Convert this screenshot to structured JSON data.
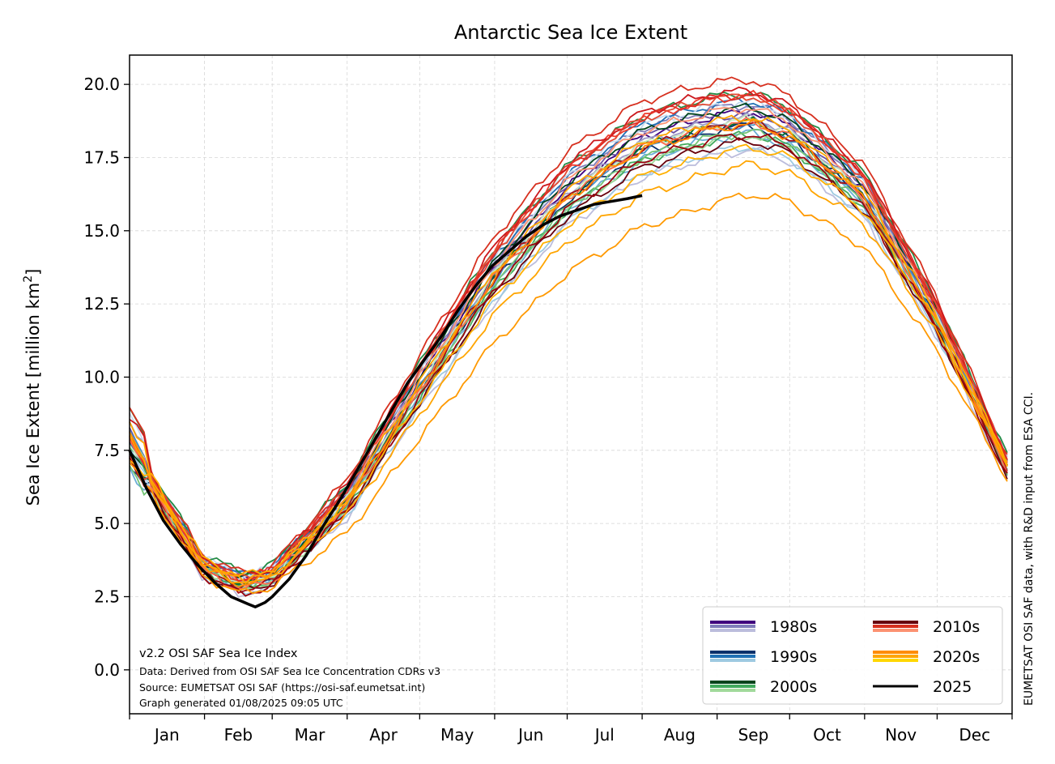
{
  "chart_data": {
    "type": "line",
    "title": "Antarctic Sea Ice Extent",
    "ylabel": "Sea Ice Extent [million km²]",
    "ylabel_main": "Sea Ice Extent [million km",
    "ylabel_sup": "2",
    "ylabel_end": "]",
    "ylim": [
      -1.5,
      21.0
    ],
    "yticks": [
      0.0,
      2.5,
      5.0,
      7.5,
      10.0,
      12.5,
      15.0,
      17.5,
      20.0
    ],
    "ytick_labels": [
      "0.0",
      "2.5",
      "5.0",
      "7.5",
      "10.0",
      "12.5",
      "15.0",
      "17.5",
      "20.0"
    ],
    "xlim": [
      1,
      366
    ],
    "month_labels": [
      "Jan",
      "Feb",
      "Mar",
      "Apr",
      "May",
      "Jun",
      "Jul",
      "Aug",
      "Sep",
      "Oct",
      "Nov",
      "Dec"
    ],
    "month_starts": [
      1,
      32,
      60,
      91,
      121,
      152,
      182,
      213,
      244,
      274,
      305,
      335,
      366
    ],
    "grid": true,
    "legend_position": "bottom-right",
    "annotations": {
      "version": "v2.2 OSI SAF Sea Ice Index",
      "data_note": "Data: Derived from OSI SAF Sea Ice Concentration CDRs v3",
      "source_note": "Source: EUMETSAT OSI SAF (https://osi-saf.eumetsat.int)",
      "generated_note": "Graph generated 01/08/2025 09:05 UTC",
      "side_credit": "EUMETSAT OSI SAF data, with R&D input from ESA CCI."
    },
    "legend": [
      {
        "label": "1980s",
        "colors": [
          "#3f007d",
          "#807dba",
          "#bcbddc"
        ]
      },
      {
        "label": "1990s",
        "colors": [
          "#08306b",
          "#2171b5",
          "#9ecae1"
        ]
      },
      {
        "label": "2000s",
        "colors": [
          "#00441b",
          "#41ab5d",
          "#a1d99b"
        ]
      },
      {
        "label": "2010s",
        "colors": [
          "#67000d",
          "#d7301f",
          "#fc9272"
        ]
      },
      {
        "label": "2020s",
        "colors": [
          "#ff8c00",
          "#ffa500",
          "#ffd700"
        ]
      },
      {
        "label": "2025",
        "colors": [
          "#000000"
        ]
      }
    ],
    "decade_curves": {
      "x": [
        1,
        31,
        47,
        60,
        91,
        121,
        152,
        182,
        213,
        244,
        258,
        274,
        305,
        335,
        366
      ],
      "median": [
        7.6,
        3.6,
        2.95,
        3.2,
        5.8,
        9.7,
        13.5,
        16.2,
        17.9,
        18.6,
        18.75,
        18.3,
        16.2,
        12.0,
        6.6
      ],
      "note": "Approximate median envelope; individual year curves shown as offsets around these values"
    },
    "series": [
      {
        "name": "2025",
        "color": "#000000",
        "x": [
          1,
          8,
          15,
          22,
          29,
          36,
          43,
          50,
          53,
          57,
          60,
          67,
          74,
          81,
          88,
          95,
          102,
          109,
          116,
          123,
          130,
          137,
          144,
          151,
          158,
          165,
          172,
          179,
          186,
          193,
          200,
          207,
          213
        ],
        "y": [
          7.5,
          6.2,
          5.1,
          4.3,
          3.6,
          3.0,
          2.5,
          2.25,
          2.15,
          2.3,
          2.5,
          3.1,
          3.9,
          4.9,
          5.8,
          6.8,
          7.8,
          8.8,
          9.8,
          10.6,
          11.4,
          12.3,
          13.1,
          13.8,
          14.3,
          14.8,
          15.2,
          15.5,
          15.7,
          15.9,
          16.0,
          16.1,
          16.2
        ]
      }
    ]
  }
}
